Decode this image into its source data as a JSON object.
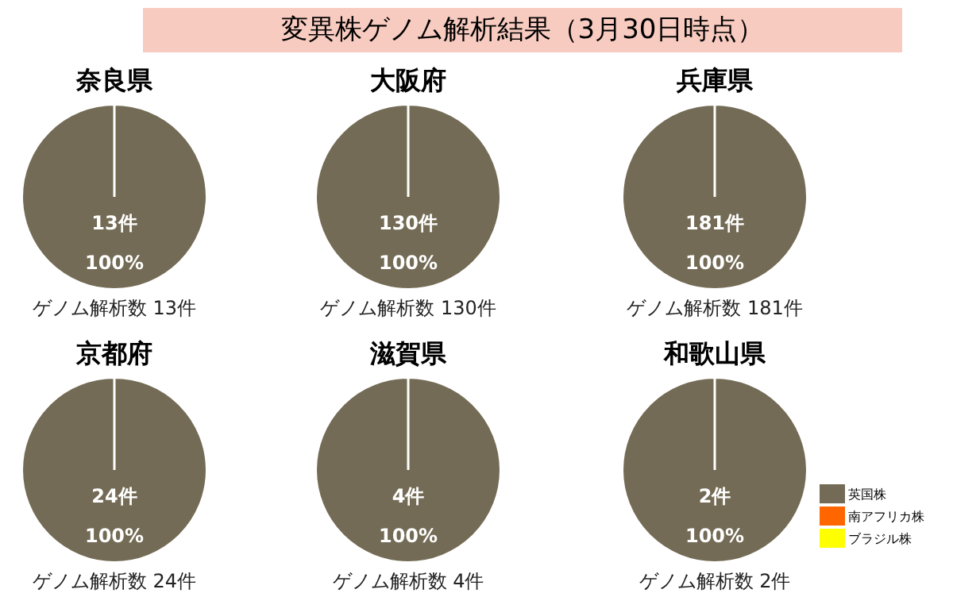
{
  "chart_data": [
    {
      "type": "other",
      "title": "変異株ゲノム解析結果（3月30日時点）"
    },
    {
      "type": "pie",
      "title": "奈良県",
      "categories": [
        null,
        null,
        null
      ],
      "values": [
        13,
        0,
        0
      ],
      "colors": [
        "#736b55",
        "#ff6600",
        "#ffff00"
      ],
      "value_labels": [
        "13件\n100%",
        null,
        null
      ],
      "annotations": [
        "ゲノム解析数 13件"
      ],
      "legend": false
    },
    {
      "type": "pie",
      "title": "大阪府",
      "categories": [
        null,
        null,
        null
      ],
      "values": [
        130,
        0,
        0
      ],
      "colors": [
        "#736b55",
        "#ff6600",
        "#ffff00"
      ],
      "value_labels": [
        "130件\n100%",
        null,
        null
      ],
      "annotations": [
        "ゲノム解析数 130件"
      ],
      "legend": false
    },
    {
      "type": "pie",
      "title": "兵庫県",
      "categories": [
        null,
        null,
        null
      ],
      "values": [
        181,
        0,
        0
      ],
      "colors": [
        "#736b55",
        "#ff6600",
        "#ffff00"
      ],
      "value_labels": [
        "181件\n100%",
        null,
        null
      ],
      "annotations": [
        "ゲノム解析数 181件"
      ],
      "legend": false
    },
    {
      "type": "pie",
      "title": "京都府",
      "categories": [
        null,
        null,
        null
      ],
      "values": [
        24,
        0,
        0
      ],
      "colors": [
        "#736b55",
        "#ff6600",
        "#ffff00"
      ],
      "value_labels": [
        "24件\n100%",
        null,
        null
      ],
      "annotations": [
        "ゲノム解析数 24件"
      ],
      "legend": false
    },
    {
      "type": "pie",
      "title": "滋賀県",
      "categories": [
        null,
        null,
        null
      ],
      "values": [
        4,
        0,
        0
      ],
      "colors": [
        "#736b55",
        "#ff6600",
        "#ffff00"
      ],
      "value_labels": [
        "4件\n100%",
        null,
        null
      ],
      "annotations": [
        "ゲノム解析数 4件"
      ],
      "legend": false
    },
    {
      "type": "pie",
      "title": "和歌山県",
      "categories": [
        "英国株",
        "南アフリカ株",
        "ブラジル株"
      ],
      "values": [
        2,
        0,
        0
      ],
      "colors": [
        "#736b55",
        "#ff6600",
        "#ffff00"
      ],
      "value_labels": [
        "2件\n100%",
        null,
        null
      ],
      "annotations": [
        "ゲノム解析数 2件"
      ],
      "legend": "right"
    }
  ]
}
